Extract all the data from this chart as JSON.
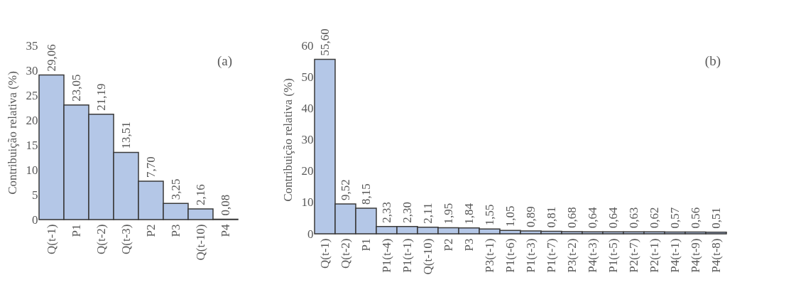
{
  "chart_data": [
    {
      "type": "bar",
      "ylabel": "Contribuição relativa (%)",
      "categories": [
        "Q(t-1)",
        "P1",
        "Q(t-2)",
        "Q(t-3)",
        "P2",
        "P3",
        "Q(t-10)",
        "P4"
      ],
      "values": [
        29.06,
        23.05,
        21.19,
        13.51,
        7.7,
        3.25,
        2.16,
        0.08
      ],
      "value_labels": [
        "29,06",
        "23,05",
        "21,19",
        "13,51",
        "7,70",
        "3,25",
        "2,16",
        "0,08"
      ],
      "color": "#b4c7e7",
      "ylim": [
        0,
        35
      ],
      "yticks": [
        0,
        5,
        10,
        15,
        20,
        25,
        30,
        35
      ],
      "grid": false,
      "annotations": [
        "(a)"
      ]
    },
    {
      "type": "bar",
      "ylabel": "Contribuição relativa (%)",
      "categories": [
        "Q(t-1)",
        "Q(t-2)",
        "P1",
        "P1(t-4)",
        "P1(t-1)",
        "Q(t-10)",
        "P2",
        "P3",
        "P3(t-1)",
        "P1(t-6)",
        "P1(t-3)",
        "P1(t-7)",
        "P3(t-2)",
        "P4(t-3)",
        "P1(t-5)",
        "P2(t-7)",
        "P2(t-1)",
        "P4(t-1)",
        "P4(t-9)",
        "P4(t-8)"
      ],
      "values": [
        55.6,
        9.52,
        8.15,
        2.33,
        2.3,
        2.11,
        1.95,
        1.84,
        1.55,
        1.05,
        0.89,
        0.81,
        0.68,
        0.64,
        0.64,
        0.63,
        0.62,
        0.57,
        0.56,
        0.51
      ],
      "value_labels": [
        "55,60",
        "9,52",
        "8,15",
        "2,33",
        "2,30",
        "2,11",
        "1,95",
        "1,84",
        "1,55",
        "1,05",
        "0,89",
        "0,81",
        "0,68",
        "0,64",
        "0,64",
        "0,63",
        "0,62",
        "0,57",
        "0,56",
        "0,51"
      ],
      "color": "#b4c7e7",
      "ylim": [
        0,
        60
      ],
      "yticks": [
        0,
        10,
        20,
        30,
        40,
        50,
        60
      ],
      "grid": false,
      "annotations": [
        "(b)"
      ]
    }
  ]
}
